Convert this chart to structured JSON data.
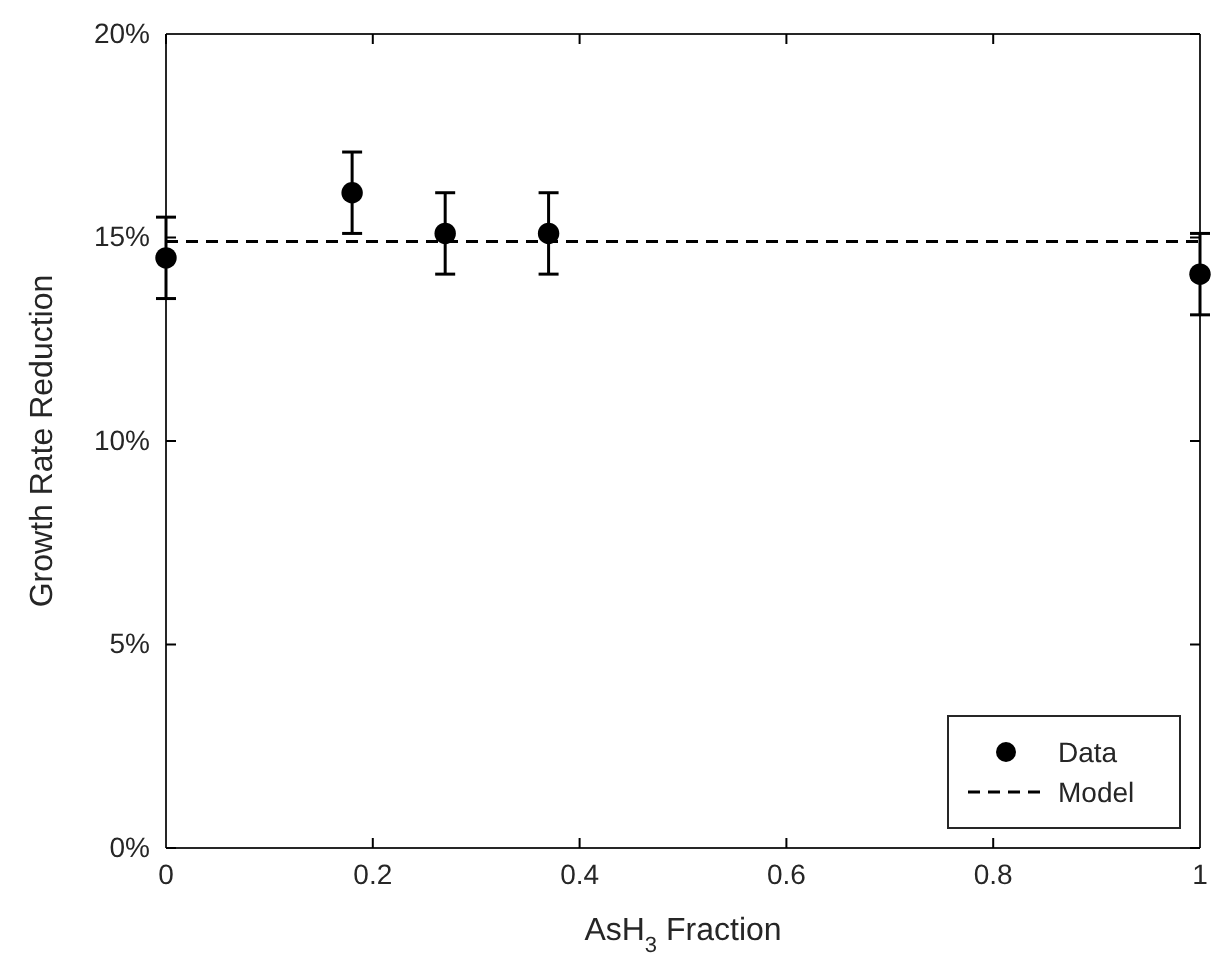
{
  "chart_data": {
    "type": "scatter",
    "xlabel": "AsH$_{3}$ Fraction",
    "ylabel": "Growth Rate Reduction",
    "xlim": [
      0,
      1
    ],
    "xticks": [
      0,
      0.2,
      0.4,
      0.6,
      0.8,
      1
    ],
    "ylim": [
      0,
      20
    ],
    "yticks": [
      {
        "value": 0,
        "label": "0%"
      },
      {
        "value": 5,
        "label": "5%"
      },
      {
        "value": 10,
        "label": "10%"
      },
      {
        "value": 15,
        "label": "15%"
      },
      {
        "value": 20,
        "label": "20%"
      }
    ],
    "series": [
      {
        "name": "Data",
        "color": "#000000",
        "marker": "circle",
        "x": [
          0,
          0.18,
          0.27,
          0.37,
          1
        ],
        "values": [
          14.5,
          16.1,
          15.1,
          15.1,
          14.1
        ],
        "errors": [
          1,
          1,
          1,
          1,
          1
        ]
      },
      {
        "name": "Model",
        "type": "line",
        "color": "#000000",
        "line_style": "dashed",
        "marker": "none",
        "x": [
          0,
          1
        ],
        "values": [
          14.9,
          14.9
        ]
      }
    ],
    "legend": "bottom right",
    "grid": false
  }
}
